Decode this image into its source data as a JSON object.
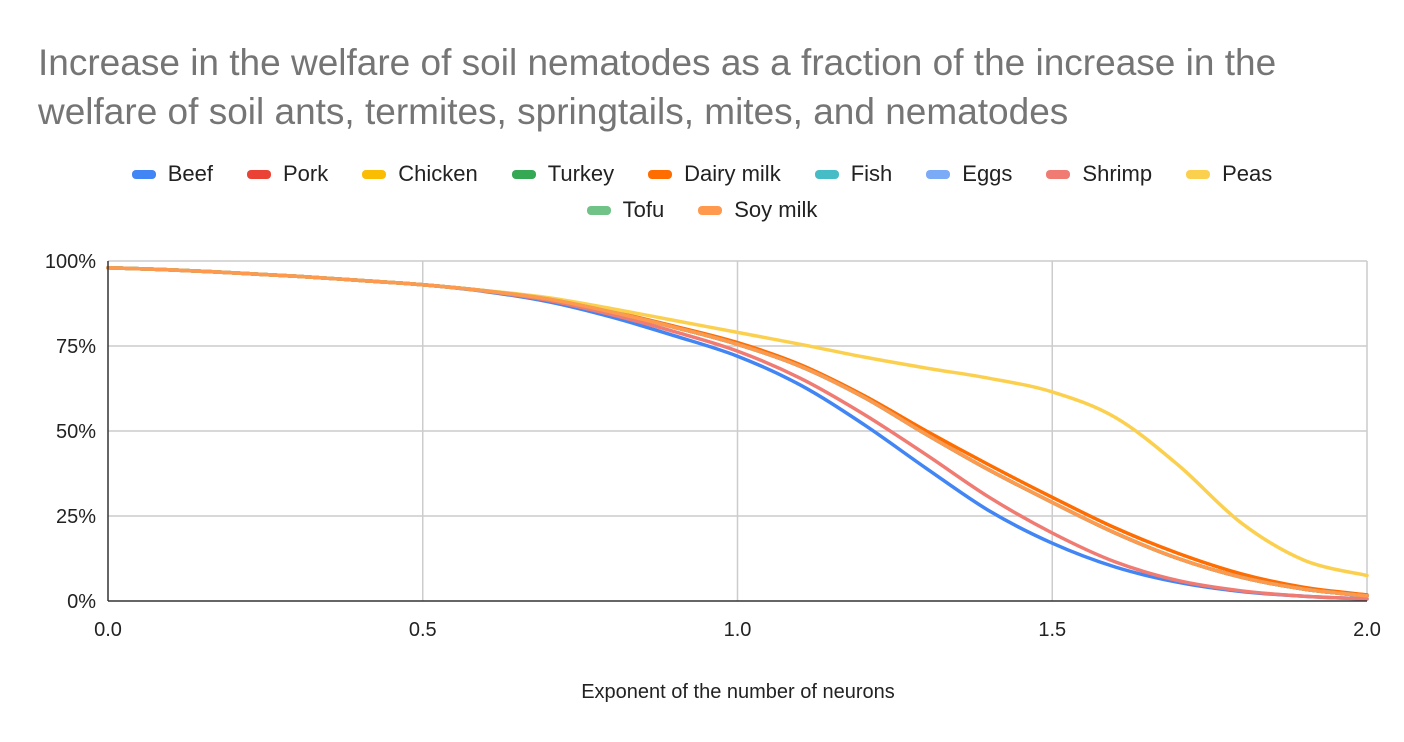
{
  "chart_data": {
    "type": "line",
    "title": "Increase in the welfare of soil nematodes as a fraction of the increase in the welfare of soil ants, termites, springtails, mites, and nematodes",
    "xlabel": "Exponent of the number of neurons",
    "ylabel": "",
    "xlim": [
      0,
      2
    ],
    "ylim": [
      0,
      1
    ],
    "x_ticks": [
      0,
      0.5,
      1,
      1.5,
      2
    ],
    "x_tick_labels": [
      "0.0",
      "0.5",
      "1.0",
      "1.5",
      "2.0"
    ],
    "y_ticks": [
      0,
      0.25,
      0.5,
      0.75,
      1
    ],
    "y_tick_labels": [
      "0%",
      "25%",
      "50%",
      "75%",
      "100%"
    ],
    "grid": true,
    "legend_position": "top",
    "x": [
      0,
      0.1,
      0.2,
      0.3,
      0.4,
      0.5,
      0.6,
      0.7,
      0.8,
      0.9,
      1.0,
      1.1,
      1.2,
      1.3,
      1.4,
      1.5,
      1.6,
      1.7,
      1.8,
      1.9,
      2.0
    ],
    "series": [
      {
        "name": "Beef",
        "color": "#4285f4",
        "values": [
          0.98,
          0.974,
          0.965,
          0.955,
          0.943,
          0.93,
          0.91,
          0.88,
          0.835,
          0.78,
          0.72,
          0.635,
          0.52,
          0.39,
          0.265,
          0.17,
          0.1,
          0.055,
          0.028,
          0.014,
          0.006
        ]
      },
      {
        "name": "Pork",
        "color": "#ea4335",
        "values": [
          0.98,
          0.974,
          0.965,
          0.955,
          0.943,
          0.93,
          0.912,
          0.888,
          0.85,
          0.805,
          0.755,
          0.69,
          0.6,
          0.49,
          0.385,
          0.29,
          0.2,
          0.125,
          0.07,
          0.035,
          0.015
        ]
      },
      {
        "name": "Chicken",
        "color": "#fbbc04",
        "values": [
          0.98,
          0.974,
          0.965,
          0.955,
          0.943,
          0.93,
          0.912,
          0.888,
          0.85,
          0.805,
          0.755,
          0.69,
          0.6,
          0.49,
          0.385,
          0.29,
          0.2,
          0.125,
          0.07,
          0.035,
          0.015
        ]
      },
      {
        "name": "Turkey",
        "color": "#34a853",
        "values": [
          0.98,
          0.974,
          0.965,
          0.955,
          0.943,
          0.93,
          0.912,
          0.888,
          0.85,
          0.805,
          0.755,
          0.69,
          0.6,
          0.49,
          0.385,
          0.29,
          0.2,
          0.125,
          0.07,
          0.035,
          0.015
        ]
      },
      {
        "name": "Dairy milk",
        "color": "#ff6d01",
        "values": [
          0.98,
          0.974,
          0.965,
          0.955,
          0.943,
          0.93,
          0.912,
          0.888,
          0.852,
          0.808,
          0.76,
          0.695,
          0.605,
          0.5,
          0.4,
          0.305,
          0.215,
          0.14,
          0.08,
          0.04,
          0.018
        ]
      },
      {
        "name": "Fish",
        "color": "#46bdc6",
        "values": [
          0.98,
          0.974,
          0.965,
          0.955,
          0.943,
          0.93,
          0.912,
          0.888,
          0.85,
          0.805,
          0.755,
          0.69,
          0.6,
          0.49,
          0.385,
          0.29,
          0.2,
          0.125,
          0.07,
          0.035,
          0.015
        ]
      },
      {
        "name": "Eggs",
        "color": "#7baaf7",
        "values": [
          0.98,
          0.974,
          0.965,
          0.955,
          0.943,
          0.93,
          0.912,
          0.888,
          0.85,
          0.805,
          0.755,
          0.69,
          0.6,
          0.49,
          0.385,
          0.29,
          0.2,
          0.125,
          0.07,
          0.035,
          0.015
        ]
      },
      {
        "name": "Shrimp",
        "color": "#f07b72",
        "values": [
          0.98,
          0.974,
          0.965,
          0.955,
          0.943,
          0.93,
          0.911,
          0.884,
          0.842,
          0.792,
          0.735,
          0.655,
          0.55,
          0.43,
          0.305,
          0.2,
          0.115,
          0.06,
          0.03,
          0.014,
          0.006
        ]
      },
      {
        "name": "Peas",
        "color": "#fcd04f",
        "values": [
          0.98,
          0.974,
          0.965,
          0.955,
          0.943,
          0.93,
          0.913,
          0.892,
          0.86,
          0.825,
          0.79,
          0.755,
          0.718,
          0.685,
          0.655,
          0.615,
          0.54,
          0.4,
          0.23,
          0.12,
          0.075
        ]
      },
      {
        "name": "Tofu",
        "color": "#71c287",
        "values": [
          0.98,
          0.974,
          0.965,
          0.955,
          0.943,
          0.93,
          0.912,
          0.888,
          0.85,
          0.805,
          0.755,
          0.69,
          0.6,
          0.49,
          0.385,
          0.29,
          0.2,
          0.125,
          0.07,
          0.035,
          0.015
        ]
      },
      {
        "name": "Soy milk",
        "color": "#ff994d",
        "values": [
          0.98,
          0.974,
          0.965,
          0.955,
          0.943,
          0.93,
          0.912,
          0.888,
          0.85,
          0.805,
          0.755,
          0.69,
          0.6,
          0.49,
          0.385,
          0.29,
          0.2,
          0.125,
          0.07,
          0.035,
          0.015
        ]
      }
    ]
  }
}
